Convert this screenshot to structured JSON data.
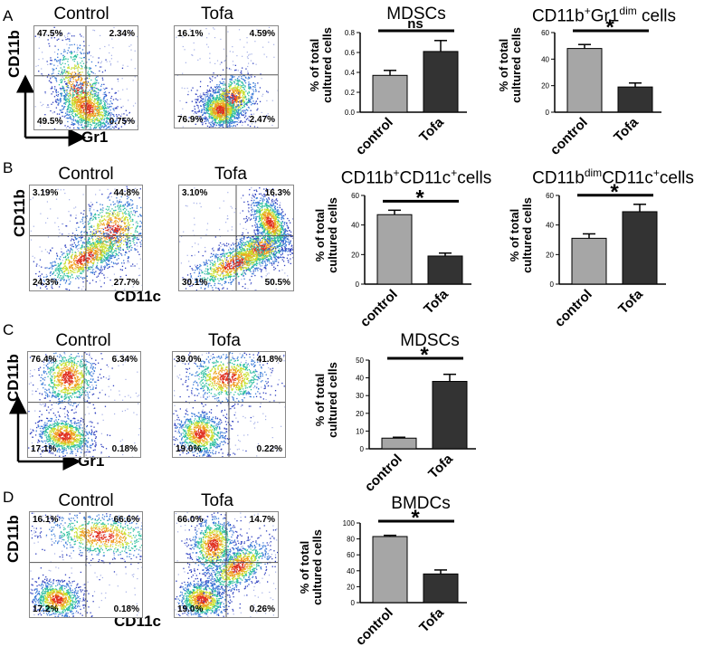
{
  "panels": [
    {
      "letter": "A",
      "xaxis": "Gr1",
      "yaxis": "CD11b",
      "control": {
        "title": "Control",
        "q": [
          "47.5%",
          "2.34%",
          "49.5%",
          "0.75%"
        ]
      },
      "tofa": {
        "title": "Tofa",
        "q": [
          "16.1%",
          "4.59%",
          "76.9%",
          "2.47%"
        ]
      }
    },
    {
      "letter": "B",
      "xaxis": "CD11c",
      "yaxis": "CD11b",
      "control": {
        "title": "Control",
        "q": [
          "3.19%",
          "44.8%",
          "24.3%",
          "27.7%"
        ]
      },
      "tofa": {
        "title": "Tofa",
        "q": [
          "3.10%",
          "16.3%",
          "30.1%",
          "50.5%"
        ]
      }
    },
    {
      "letter": "C",
      "xaxis": "Gr1",
      "yaxis": "CD11b",
      "control": {
        "title": "Control",
        "q": [
          "76.4%",
          "6.34%",
          "17.1%",
          "0.18%"
        ]
      },
      "tofa": {
        "title": "Tofa",
        "q": [
          "39.0%",
          "41.8%",
          "19.0%",
          "0.22%"
        ]
      }
    },
    {
      "letter": "D",
      "xaxis": "CD11c",
      "yaxis": "CD11b",
      "control": {
        "title": "Control",
        "q": [
          "16.1%",
          "66.6%",
          "17.2%",
          "0.18%"
        ]
      },
      "tofa": {
        "title": "Tofa",
        "q": [
          "66.0%",
          "14.7%",
          "19.0%",
          "0.26%"
        ]
      }
    }
  ],
  "ylabel_line1": "% of total",
  "ylabel_line2": "cultured cells",
  "chart_data": [
    {
      "type": "bar",
      "title": "MDSCs",
      "title_parts": [
        {
          "t": "MDSCs",
          "s": ""
        }
      ],
      "categories": [
        "control",
        "Tofa"
      ],
      "values": [
        0.37,
        0.61
      ],
      "errors": [
        0.05,
        0.11
      ],
      "ylim": [
        0,
        0.8
      ],
      "yticks": [
        "0.0",
        "0.2",
        "0.4",
        "0.6",
        "0.8"
      ],
      "significance": "ns",
      "colors": [
        "#a6a6a6",
        "#333333"
      ]
    },
    {
      "type": "bar",
      "title": "CD11b+Gr1dim cells",
      "title_parts": [
        {
          "t": "CD11b",
          "s": ""
        },
        {
          "t": "+",
          "s": "sup"
        },
        {
          "t": "Gr1",
          "s": ""
        },
        {
          "t": "dim",
          "s": "sup"
        },
        {
          "t": " cells",
          "s": ""
        }
      ],
      "categories": [
        "control",
        "Tofa"
      ],
      "values": [
        48,
        19
      ],
      "errors": [
        3,
        3
      ],
      "ylim": [
        0,
        60
      ],
      "yticks": [
        "0",
        "20",
        "40",
        "60"
      ],
      "significance": "*",
      "colors": [
        "#a6a6a6",
        "#333333"
      ]
    },
    {
      "type": "bar",
      "title": "CD11b+CD11c+cells",
      "title_parts": [
        {
          "t": "CD11b",
          "s": ""
        },
        {
          "t": "+",
          "s": "sup"
        },
        {
          "t": "CD11c",
          "s": ""
        },
        {
          "t": "+",
          "s": "sup"
        },
        {
          "t": "cells",
          "s": ""
        }
      ],
      "categories": [
        "control",
        "Tofa"
      ],
      "values": [
        47,
        19
      ],
      "errors": [
        3,
        2
      ],
      "ylim": [
        0,
        60
      ],
      "yticks": [
        "0",
        "20",
        "40",
        "60"
      ],
      "significance": "*",
      "colors": [
        "#a6a6a6",
        "#333333"
      ]
    },
    {
      "type": "bar",
      "title": "CD11bdimCD11c+cells",
      "title_parts": [
        {
          "t": "CD11b",
          "s": ""
        },
        {
          "t": "dim",
          "s": "sup"
        },
        {
          "t": "CD11c",
          "s": ""
        },
        {
          "t": "+",
          "s": "sup"
        },
        {
          "t": "cells",
          "s": ""
        }
      ],
      "categories": [
        "control",
        "Tofa"
      ],
      "values": [
        31,
        49
      ],
      "errors": [
        3,
        5
      ],
      "ylim": [
        0,
        60
      ],
      "yticks": [
        "0",
        "20",
        "40",
        "60"
      ],
      "significance": "*",
      "colors": [
        "#a6a6a6",
        "#333333"
      ]
    },
    {
      "type": "bar",
      "title": "MDSCs",
      "title_parts": [
        {
          "t": "MDSCs",
          "s": ""
        }
      ],
      "categories": [
        "control",
        "Tofa"
      ],
      "values": [
        6,
        38
      ],
      "errors": [
        0.5,
        4
      ],
      "ylim": [
        0,
        50
      ],
      "yticks": [
        "0",
        "10",
        "20",
        "30",
        "40",
        "50"
      ],
      "significance": "*",
      "colors": [
        "#a6a6a6",
        "#333333"
      ]
    },
    {
      "type": "bar",
      "title": "BMDCs",
      "title_parts": [
        {
          "t": "BMDCs",
          "s": ""
        }
      ],
      "categories": [
        "control",
        "Tofa"
      ],
      "values": [
        83,
        36
      ],
      "errors": [
        1.5,
        5
      ],
      "ylim": [
        0,
        100
      ],
      "yticks": [
        "0",
        "20",
        "40",
        "60",
        "80",
        "100"
      ],
      "significance": "*",
      "colors": [
        "#a6a6a6",
        "#333333"
      ]
    }
  ]
}
